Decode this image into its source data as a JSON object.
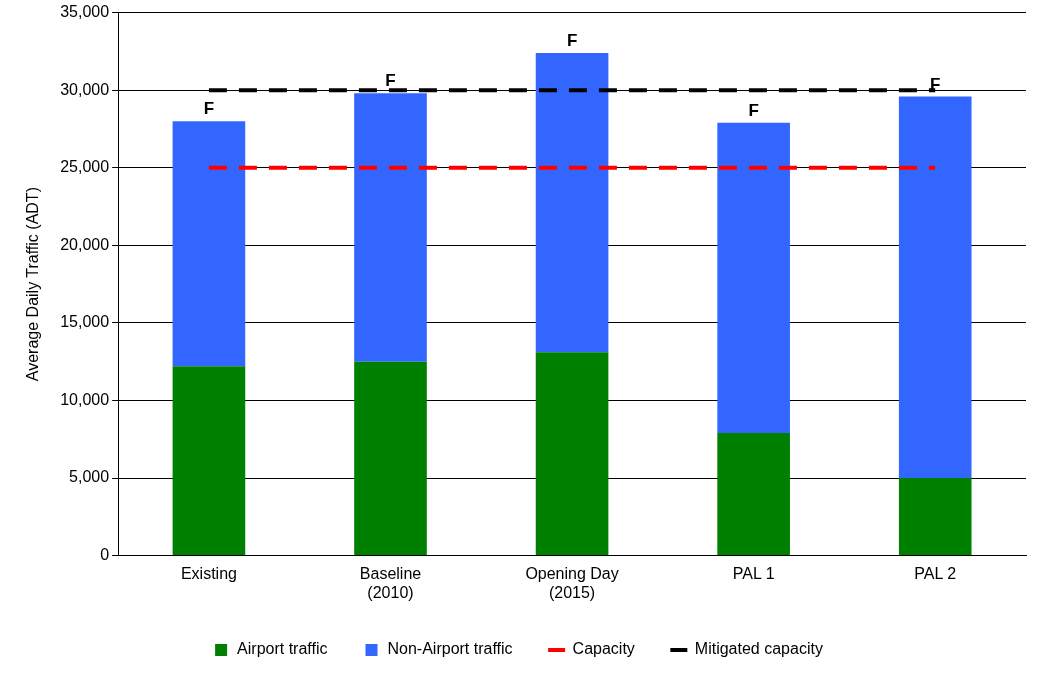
{
  "chart_data": {
    "type": "bar",
    "stacked": true,
    "ylabel": "Average Daily Traffic (ADT)",
    "categories": [
      "Existing",
      "Baseline (2010)",
      "Opening Day (2015)",
      "PAL 1",
      "PAL 2"
    ],
    "series": [
      {
        "name": "Airport traffic",
        "color": "#008000",
        "values": [
          12200,
          12500,
          13100,
          7900,
          5000
        ]
      },
      {
        "name": "Non-Airport traffic",
        "color": "#3366ff",
        "values": [
          15800,
          17300,
          19300,
          20000,
          24600
        ]
      },
      {
        "name": "Capacity",
        "type": "line",
        "color": "#ff0000",
        "line_style": "dashed",
        "marker": "none",
        "values": [
          25000,
          25000,
          25000,
          25000,
          25000
        ]
      },
      {
        "name": "Mitigated capacity",
        "type": "line",
        "color": "#000000",
        "line_style": "dashed",
        "marker": "none",
        "values": [
          30000,
          30000,
          30000,
          30000,
          30000
        ]
      }
    ],
    "annotations": [
      {
        "text": "F",
        "x": "Existing",
        "y": 28000
      },
      {
        "text": "F",
        "x": "Baseline (2010)",
        "y": 29800
      },
      {
        "text": "F",
        "x": "Opening Day (2015)",
        "y": 32400
      },
      {
        "text": "F",
        "x": "PAL 1",
        "y": 27900
      },
      {
        "text": "F",
        "x": "PAL 2",
        "y": 29600
      }
    ],
    "ylim": [
      0,
      35000
    ],
    "yticks": [
      0,
      {
        "value": 5000,
        "label": "5,000"
      },
      {
        "value": 10000,
        "label": "10,000"
      },
      {
        "value": 15000,
        "label": "15,000"
      },
      {
        "value": 20000,
        "label": "20,000"
      },
      {
        "value": 25000,
        "label": "25,000"
      },
      {
        "value": 30000,
        "label": "30,000"
      },
      {
        "value": 35000,
        "label": "35,000"
      }
    ],
    "grid": "y",
    "legend": "bottom"
  }
}
